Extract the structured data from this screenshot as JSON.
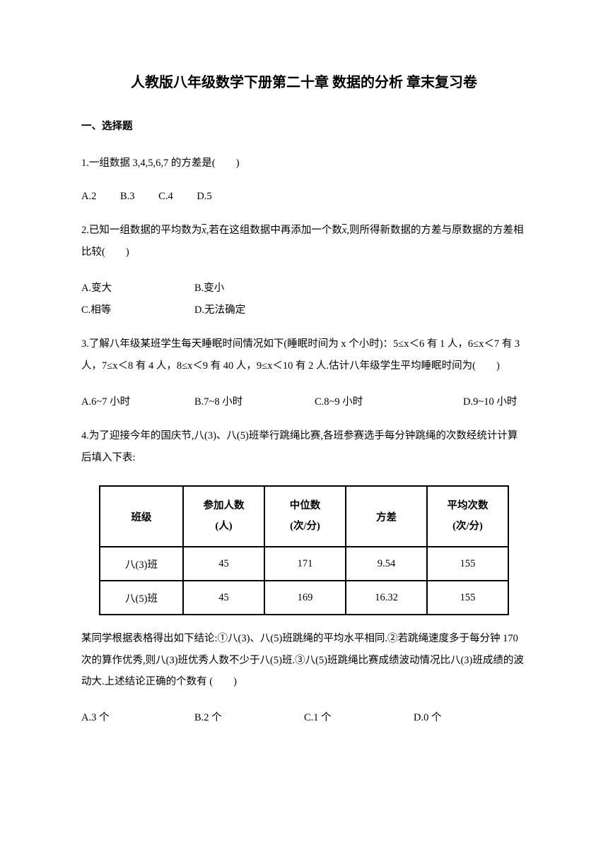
{
  "title": "人教版八年级数学下册第二十章 数据的分析 章末复习卷",
  "section_header": "一、选择题",
  "q1": {
    "text": "1.一组数据 3,4,5,6,7 的方差是(　　)",
    "a": "A.2",
    "b": "B.3",
    "c": "C.4",
    "d": "D.5"
  },
  "q2": {
    "pre": "2.已知一组数据的平均数为",
    "mid": ",若在这组数据中再添加一个数",
    "post": ",则所得新数据的方差与原数据的方差相比较(　　)",
    "a": "A.变大",
    "b": "B.变小",
    "c": "C.相等",
    "d": "D.无法确定"
  },
  "q3": {
    "text": "3.了解八年级某班学生每天睡眠时间情况如下(睡眠时间为 x 个小时)：5≤x＜6 有 1 人，6≤x＜7 有 3 人，7≤x＜8 有 4 人，8≤x＜9 有 40 人，9≤x＜10 有 2 人.估计八年级学生平均睡眠时间为(　　)",
    "a": "A.6~7 小时",
    "b": "B.7~8 小时",
    "c": "C.8~9 小时",
    "d": "D.9~10 小时"
  },
  "q4": {
    "intro": "4.为了迎接今年的国庆节,八(3)、八(5)班举行跳绳比赛,各班参赛选手每分钟跳绳的次数经统计计算后填入下表:",
    "table": {
      "headers": {
        "c1": "班级",
        "c2_l1": "参加人数",
        "c2_l2": "(人)",
        "c3_l1": "中位数",
        "c3_l2": "(次/分)",
        "c4": "方差",
        "c5_l1": "平均次数",
        "c5_l2": "(次/分)"
      },
      "rows": [
        {
          "c1": "八(3)班",
          "c2": "45",
          "c3": "171",
          "c4": "9.54",
          "c5": "155"
        },
        {
          "c1": "八(5)班",
          "c2": "45",
          "c3": "169",
          "c4": "16.32",
          "c5": "155"
        }
      ]
    },
    "conclusion": "某同学根据表格得出如下结论:①八(3)、八(5)班跳绳的平均水平相同.②若跳绳速度多于每分钟 170 次的算作优秀,则八(3)班优秀人数不少于八(5)班.③八(5)班跳绳比赛成绩波动情况比八(3)班成绩的波动大.上述结论正确的个数有 (　　)",
    "a": "A.3 个",
    "b": "B.2 个",
    "c": "C.1 个",
    "d": "D.0 个"
  }
}
